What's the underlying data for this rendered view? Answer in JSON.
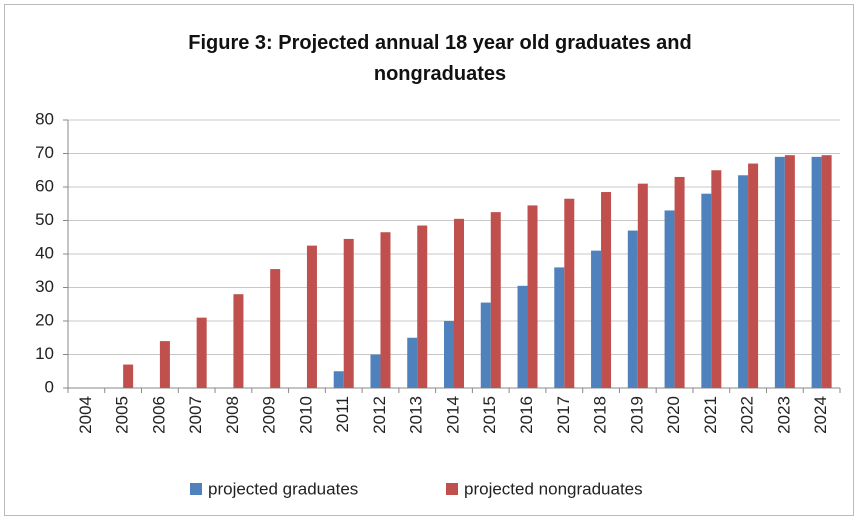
{
  "chart_data": {
    "type": "bar",
    "title": "Figure 3: Projected annual 18 year old graduates and nongraduates",
    "categories": [
      "2004",
      "2005",
      "2006",
      "2007",
      "2008",
      "2009",
      "2010",
      "2011",
      "2012",
      "2013",
      "2014",
      "2015",
      "2016",
      "2017",
      "2018",
      "2019",
      "2020",
      "2021",
      "2022",
      "2023",
      "2024"
    ],
    "series": [
      {
        "name": "projected graduates",
        "color": "#4f81bd",
        "values": [
          0,
          0,
          0,
          0,
          0,
          0,
          0,
          5,
          10,
          15,
          20,
          25.5,
          30.5,
          36,
          41,
          47,
          53,
          58,
          63.5,
          69,
          69
        ]
      },
      {
        "name": "projected nongraduates",
        "color": "#c0504d",
        "values": [
          0,
          7,
          14,
          21,
          28,
          35.5,
          42.5,
          44.5,
          46.5,
          48.5,
          50.5,
          52.5,
          54.5,
          56.5,
          58.5,
          61,
          63,
          65,
          67,
          69.5,
          69.5
        ]
      }
    ],
    "ylim": [
      0,
      80
    ],
    "yticks": [
      0,
      10,
      20,
      30,
      40,
      50,
      60,
      70,
      80
    ],
    "grid": true,
    "legend": "bottom"
  }
}
